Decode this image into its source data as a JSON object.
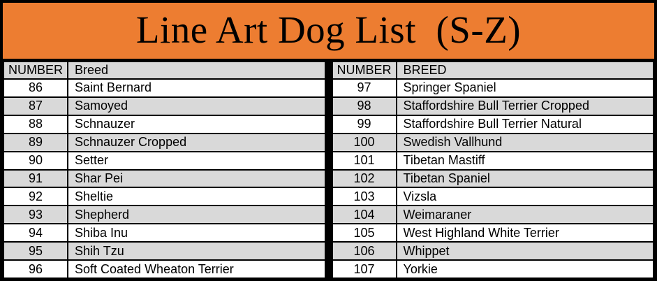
{
  "title": "Line Art Dog List  (S-Z)",
  "colors": {
    "banner_bg": "#ED7D31",
    "row_alt_bg": "#D9D9D9",
    "row_bg": "#FFFFFF",
    "border": "#000000",
    "text": "#000000"
  },
  "left_table": {
    "headers": {
      "number": "NUMBER",
      "breed": "Breed"
    },
    "rows": [
      {
        "number": "86",
        "breed": "Saint Bernard"
      },
      {
        "number": "87",
        "breed": "Samoyed"
      },
      {
        "number": "88",
        "breed": "Schnauzer"
      },
      {
        "number": "89",
        "breed": "Schnauzer Cropped"
      },
      {
        "number": "90",
        "breed": "Setter"
      },
      {
        "number": "91",
        "breed": "Shar Pei"
      },
      {
        "number": "92",
        "breed": "Sheltie"
      },
      {
        "number": "93",
        "breed": "Shepherd"
      },
      {
        "number": "94",
        "breed": "Shiba Inu"
      },
      {
        "number": "95",
        "breed": "Shih Tzu"
      },
      {
        "number": "96",
        "breed": "Soft Coated Wheaton Terrier"
      }
    ]
  },
  "right_table": {
    "headers": {
      "number": "NUMBER",
      "breed": "BREED"
    },
    "rows": [
      {
        "number": "97",
        "breed": "Springer Spaniel"
      },
      {
        "number": "98",
        "breed": "Staffordshire Bull Terrier Cropped"
      },
      {
        "number": "99",
        "breed": "Staffordshire Bull Terrier Natural"
      },
      {
        "number": "100",
        "breed": "Swedish Vallhund"
      },
      {
        "number": "101",
        "breed": "Tibetan Mastiff"
      },
      {
        "number": "102",
        "breed": "Tibetan Spaniel"
      },
      {
        "number": "103",
        "breed": "Vizsla"
      },
      {
        "number": "104",
        "breed": "Weimaraner"
      },
      {
        "number": "105",
        "breed": "West Highland White Terrier"
      },
      {
        "number": "106",
        "breed": "Whippet"
      },
      {
        "number": "107",
        "breed": "Yorkie"
      }
    ]
  }
}
